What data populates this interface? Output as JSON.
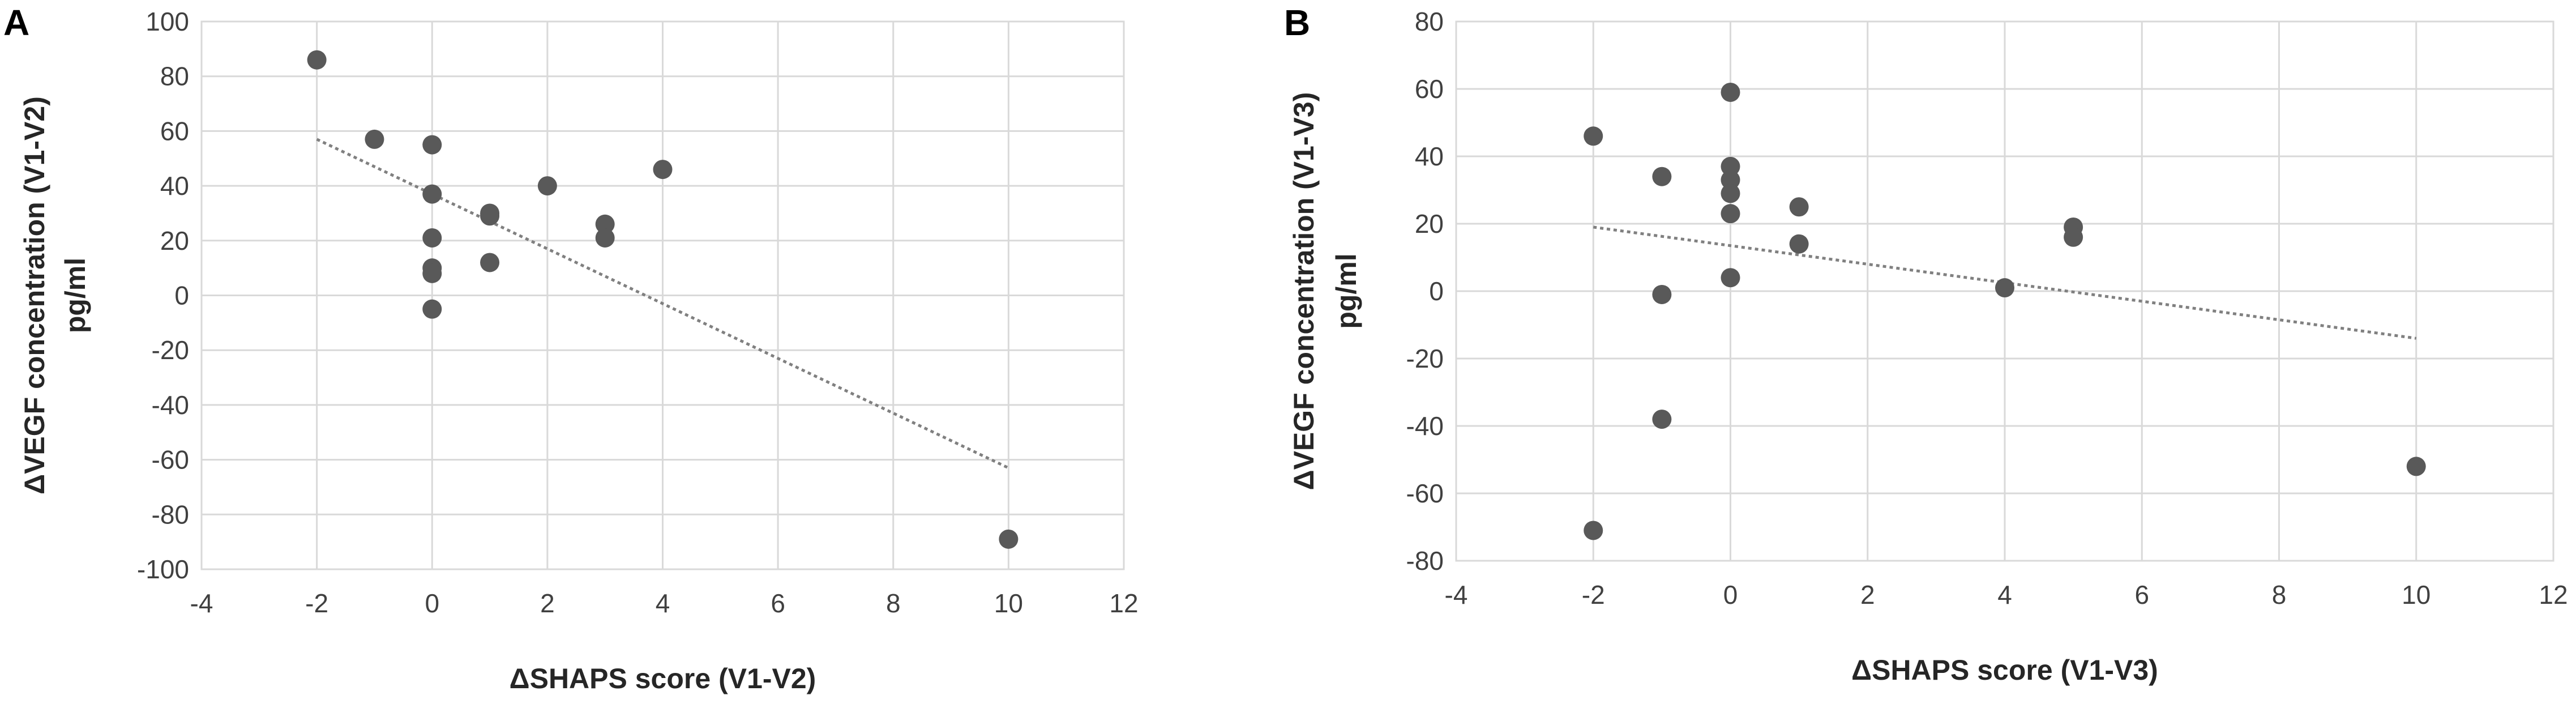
{
  "chart_data": [
    {
      "panel": "A",
      "type": "scatter",
      "xlabel": "ΔSHAPS score (V1-V2)",
      "ylabel_lines": [
        "ΔVEGF concentration  (V1-V2)",
        "pg/ml"
      ],
      "xlim": [
        -4,
        12
      ],
      "ylim": [
        -100,
        100
      ],
      "xticks": [
        -4,
        -2,
        0,
        2,
        4,
        6,
        8,
        10,
        12
      ],
      "yticks": [
        100,
        80,
        60,
        40,
        20,
        0,
        -20,
        -40,
        -60,
        -80,
        -100
      ],
      "grid": true,
      "points": [
        {
          "x": -2,
          "y": 86
        },
        {
          "x": -1,
          "y": 57
        },
        {
          "x": 0,
          "y": 55
        },
        {
          "x": 0,
          "y": 37
        },
        {
          "x": 0,
          "y": 21
        },
        {
          "x": 0,
          "y": 10
        },
        {
          "x": 0,
          "y": 8
        },
        {
          "x": 0,
          "y": -5
        },
        {
          "x": 1,
          "y": 30
        },
        {
          "x": 1,
          "y": 29
        },
        {
          "x": 1,
          "y": 12
        },
        {
          "x": 2,
          "y": 40
        },
        {
          "x": 3,
          "y": 26
        },
        {
          "x": 3,
          "y": 21
        },
        {
          "x": 4,
          "y": 46
        },
        {
          "x": 10,
          "y": -89
        }
      ],
      "trendline": {
        "x": [
          -2,
          10
        ],
        "y": [
          57,
          -63
        ]
      }
    },
    {
      "panel": "B",
      "type": "scatter",
      "xlabel": "ΔSHAPS score (V1-V3)",
      "ylabel_lines": [
        "ΔVEGF concentration  (V1-V3)",
        "pg/ml"
      ],
      "xlim": [
        -4,
        12
      ],
      "ylim": [
        -80,
        80
      ],
      "xticks": [
        -4,
        -2,
        0,
        2,
        4,
        6,
        8,
        10,
        12
      ],
      "yticks": [
        80,
        60,
        40,
        20,
        0,
        -20,
        -40,
        -60,
        -80
      ],
      "grid": true,
      "points": [
        {
          "x": -2,
          "y": 46
        },
        {
          "x": -2,
          "y": -71
        },
        {
          "x": -1,
          "y": 34
        },
        {
          "x": -1,
          "y": -1
        },
        {
          "x": -1,
          "y": -38
        },
        {
          "x": 0,
          "y": 59
        },
        {
          "x": 0,
          "y": 37
        },
        {
          "x": 0,
          "y": 33
        },
        {
          "x": 0,
          "y": 29
        },
        {
          "x": 0,
          "y": 23
        },
        {
          "x": 0,
          "y": 4
        },
        {
          "x": 1,
          "y": 25
        },
        {
          "x": 1,
          "y": 14
        },
        {
          "x": 4,
          "y": 1
        },
        {
          "x": 5,
          "y": 19
        },
        {
          "x": 5,
          "y": 16
        },
        {
          "x": 10,
          "y": -52
        }
      ],
      "trendline": {
        "x": [
          -2,
          10
        ],
        "y": [
          19,
          -14
        ]
      }
    }
  ]
}
